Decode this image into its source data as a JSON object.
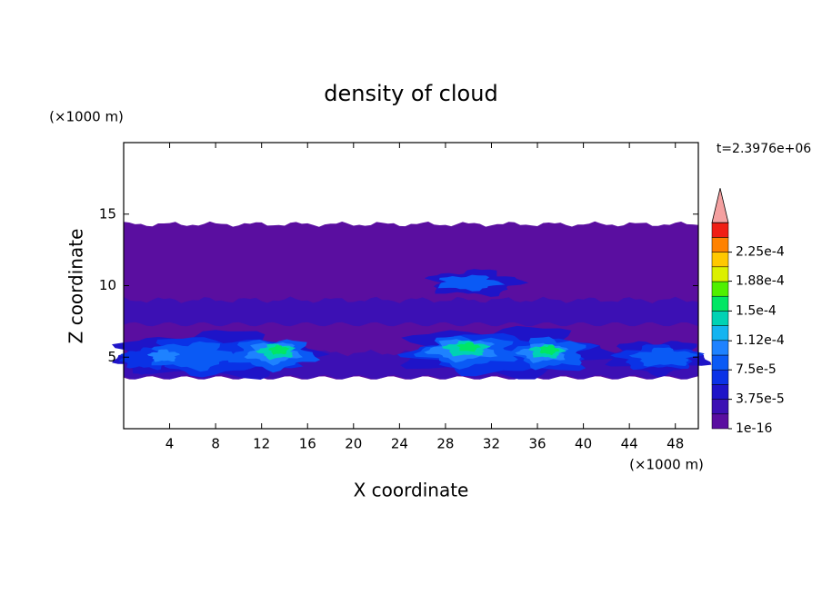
{
  "chart_data": {
    "type": "contour",
    "title": "density of cloud",
    "x_label": "X coordinate",
    "y_label": "Z coordinate",
    "x_unit": "(×1000 m)",
    "y_unit": "(×1000 m)",
    "annotation": "t=2.3976e+06",
    "xlim": [
      0,
      50
    ],
    "xticks": [
      4,
      8,
      12,
      16,
      20,
      24,
      28,
      32,
      36,
      40,
      44,
      48
    ],
    "ylim": [
      0,
      20
    ],
    "yticks": [
      5,
      10,
      15
    ],
    "colorbar": {
      "colors": [
        "#5a0ea0",
        "#3c10b4",
        "#1e14c8",
        "#0a32e6",
        "#0a5af5",
        "#1e82ff",
        "#14b4f0",
        "#00d2b4",
        "#00e664",
        "#50f000",
        "#dcf000",
        "#ffc800",
        "#ff8200",
        "#f01e14"
      ],
      "extend_color": "#f4a0a0",
      "ticks": [
        1e-16,
        {
          "value": 3.75e-05,
          "label": "3.75e-5"
        },
        {
          "value": 7.5e-05,
          "label": "7.5e-5"
        },
        {
          "value": 0.000112,
          "label": "1.12e-4"
        },
        {
          "value": 0.00015,
          "label": "1.5e-4"
        },
        {
          "value": 0.000188,
          "label": "1.88e-4"
        },
        {
          "value": 0.000225,
          "label": "2.25e-4"
        }
      ]
    }
  }
}
